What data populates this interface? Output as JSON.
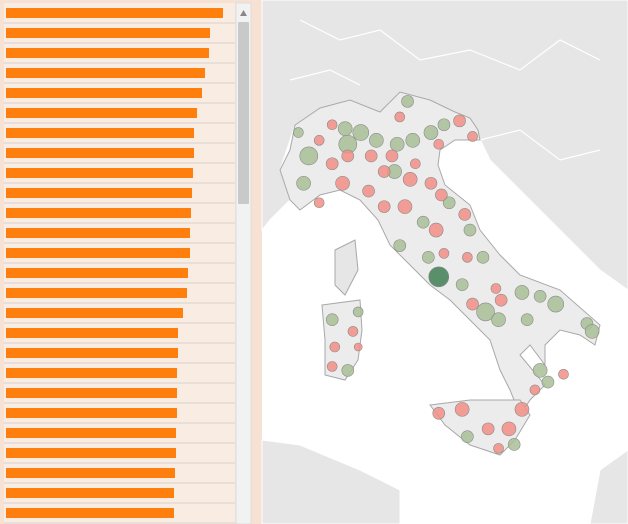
{
  "chart_data": [
    {
      "type": "bar",
      "orientation": "horizontal",
      "color": "#ff7f0e",
      "values": [
        217,
        204,
        203,
        199,
        196,
        191,
        188,
        188,
        187,
        186,
        185,
        184,
        184,
        182,
        181,
        177,
        172,
        172,
        171,
        171,
        171,
        170,
        170,
        169,
        168,
        168
      ],
      "xlim": [
        0,
        230
      ]
    },
    {
      "type": "bubble-map",
      "xlim": [
        6,
        20.08
      ],
      "ylim": [
        35.56,
        49
      ],
      "series": [
        {
          "color": "#a9c096",
          "x": [
            11.6,
            7.4,
            7.8,
            9.2,
            9.8,
            10.4,
            11.2,
            11.8,
            12.5,
            13.0,
            9.3,
            7.6,
            11.1,
            13.2,
            12.2,
            14.0,
            11.3,
            12.4,
            14.5,
            13.7,
            14.6,
            15.1,
            16.0,
            16.7,
            17.3,
            16.2,
            18.5,
            18.7,
            8.7,
            9.7,
            9.3,
            16.7,
            17.0,
            13.9,
            15.7
          ],
          "y": [
            46.4,
            45.6,
            45.0,
            45.7,
            45.6,
            45.4,
            45.3,
            45.4,
            45.6,
            45.8,
            45.3,
            44.3,
            44.6,
            43.8,
            43.3,
            43.1,
            42.7,
            42.4,
            42.4,
            41.7,
            41.0,
            40.8,
            41.5,
            41.4,
            41.2,
            40.8,
            40.7,
            40.5,
            40.8,
            41.0,
            39.5,
            39.5,
            39.2,
            37.8,
            37.6
          ],
          "size": [
            6,
            5,
            9,
            7,
            8,
            7,
            7,
            7,
            7,
            6,
            9,
            7,
            7,
            6,
            6,
            6,
            6,
            6,
            6,
            6,
            9,
            7,
            7,
            6,
            8,
            6,
            6,
            7,
            6,
            5,
            6,
            7,
            6,
            6,
            6
          ]
        },
        {
          "color": "#f28e86",
          "x": [
            8.7,
            8.2,
            9.3,
            10.2,
            8.7,
            9.1,
            8.2,
            10.1,
            10.7,
            11.7,
            11.0,
            11.9,
            12.5,
            12.8,
            13.6,
            14.1,
            11.3,
            10.7,
            11.5,
            12.9,
            13.8,
            12.7,
            13.9,
            13.0,
            15.0,
            15.2,
            14.1,
            9.5,
            8.8,
            9.7,
            8.7,
            16.0,
            16.5,
            17.6,
            13.7,
            12.8,
            14.7,
            15.5,
            15.1
          ],
          "y": [
            45.8,
            45.4,
            45.0,
            45.0,
            44.8,
            44.3,
            43.8,
            44.1,
            44.6,
            44.4,
            45.0,
            44.8,
            44.3,
            45.3,
            45.9,
            45.5,
            46.0,
            43.7,
            43.7,
            44.0,
            43.5,
            43.1,
            42.4,
            42.5,
            41.6,
            41.3,
            41.2,
            40.5,
            40.1,
            40.1,
            39.6,
            38.5,
            39.0,
            39.4,
            38.5,
            38.4,
            38.0,
            38.0,
            37.5
          ],
          "size": [
            5,
            5,
            6,
            6,
            6,
            7,
            5,
            6,
            6,
            7,
            6,
            5,
            6,
            5,
            6,
            5,
            5,
            6,
            7,
            6,
            6,
            7,
            5,
            5,
            5,
            6,
            6,
            5,
            5,
            4,
            5,
            7,
            5,
            5,
            7,
            6,
            6,
            7,
            5
          ]
        },
        {
          "color": "#3f7f53",
          "x": [
            12.8
          ],
          "y": [
            41.9
          ],
          "size": [
            10
          ]
        }
      ]
    }
  ]
}
